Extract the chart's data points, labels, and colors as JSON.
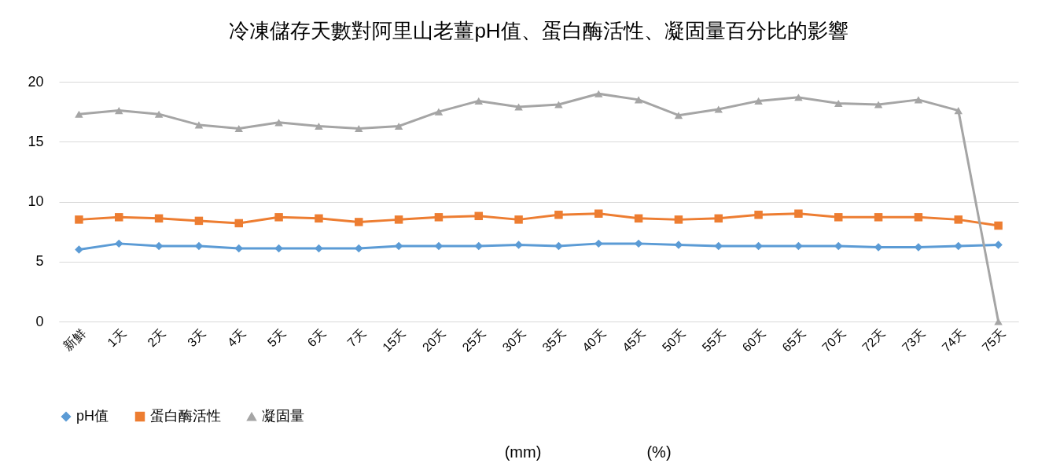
{
  "chart_data": {
    "type": "line",
    "title": "冷凍儲存天數對阿里山老薑pH值、蛋白酶活性、凝固量百分比的影響",
    "categories": [
      "新鮮",
      "1天",
      "2天",
      "3天",
      "4天",
      "5天",
      "6天",
      "7天",
      "15天",
      "20天",
      "25天",
      "30天",
      "35天",
      "40天",
      "45天",
      "50天",
      "55天",
      "60天",
      "65天",
      "70天",
      "72天",
      "73天",
      "74天",
      "75天"
    ],
    "series": [
      {
        "name": "pH值",
        "color": "#5b9bd5",
        "marker": "diamond",
        "values": [
          6.0,
          6.5,
          6.3,
          6.3,
          6.1,
          6.1,
          6.1,
          6.1,
          6.3,
          6.3,
          6.3,
          6.4,
          6.3,
          6.5,
          6.5,
          6.4,
          6.3,
          6.3,
          6.3,
          6.3,
          6.2,
          6.2,
          6.3,
          6.4
        ]
      },
      {
        "name": "蛋白酶活性",
        "color": "#ed7d31",
        "marker": "square",
        "values": [
          8.5,
          8.7,
          8.6,
          8.4,
          8.2,
          8.7,
          8.6,
          8.3,
          8.5,
          8.7,
          8.8,
          8.5,
          8.9,
          9.0,
          8.6,
          8.5,
          8.6,
          8.9,
          9.0,
          8.7,
          8.7,
          8.7,
          8.5,
          8.0
        ]
      },
      {
        "name": "凝固量",
        "color": "#a5a5a5",
        "marker": "triangle",
        "values": [
          17.3,
          17.6,
          17.3,
          16.4,
          16.1,
          16.6,
          16.3,
          16.1,
          16.3,
          17.5,
          18.4,
          17.9,
          18.1,
          19.0,
          18.5,
          17.2,
          17.7,
          18.4,
          18.7,
          18.2,
          18.1,
          18.5,
          17.6,
          0
        ]
      }
    ],
    "ylim": [
      0,
      20
    ],
    "yticks": [
      0,
      5,
      10,
      15,
      20
    ],
    "grid": "y",
    "legend": "bottom",
    "annotations": [
      "(mm)",
      "(%)"
    ]
  }
}
